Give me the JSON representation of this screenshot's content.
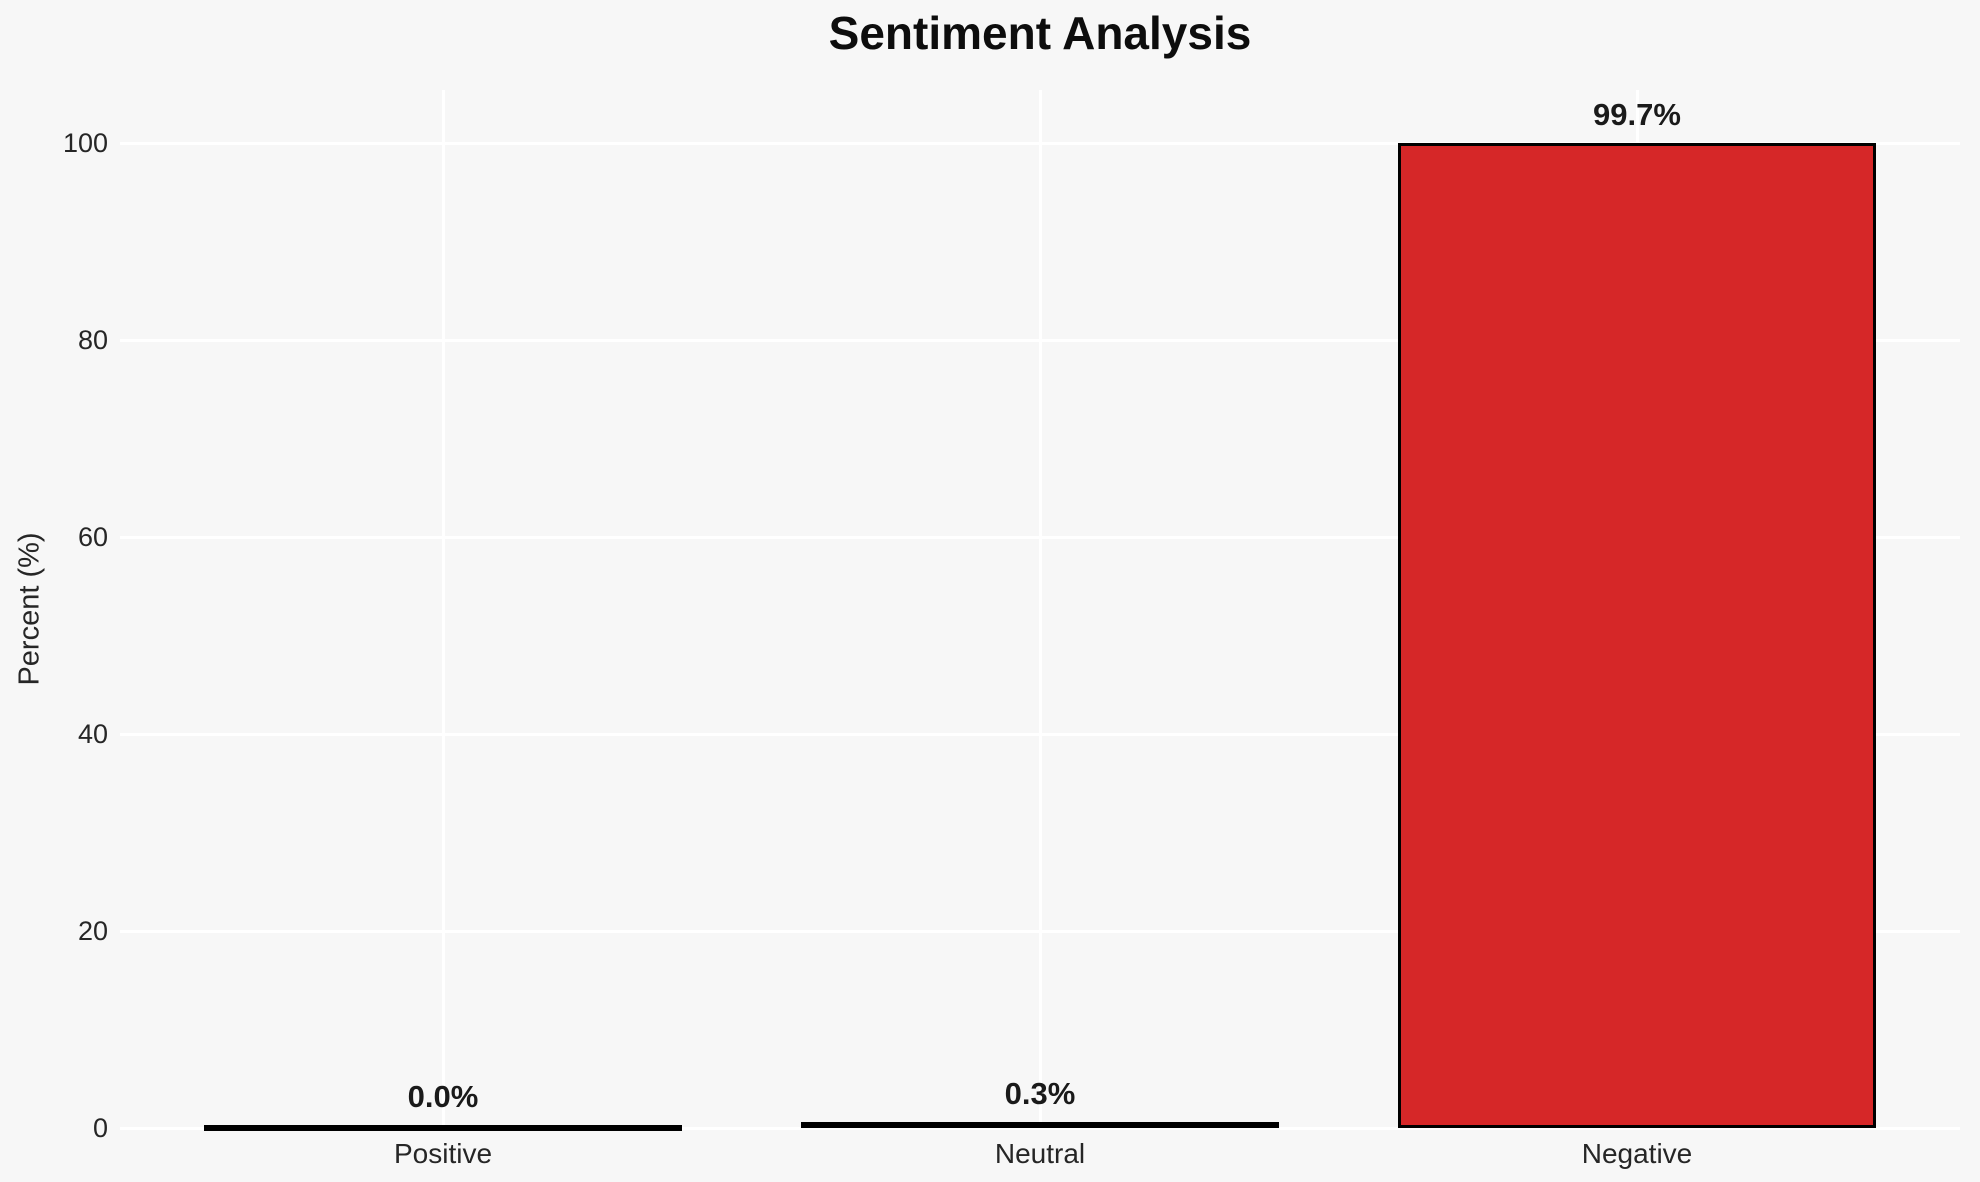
{
  "chart_data": {
    "type": "bar",
    "title": "Sentiment Analysis",
    "categories": [
      "Positive",
      "Neutral",
      "Negative"
    ],
    "values": [
      0.0,
      0.3,
      99.7
    ],
    "value_labels": [
      "0.0%",
      "0.3%",
      "99.7%"
    ],
    "xlabel": "",
    "ylabel": "Percent (%)",
    "yticks": [
      0,
      20,
      40,
      60,
      80,
      100
    ],
    "ytick_labels": [
      "0",
      "20",
      "40",
      "60",
      "80",
      "100"
    ],
    "ylim": [
      0,
      105
    ],
    "grid": true,
    "legend": false,
    "colors": {
      "bar_fill": "#d62728",
      "bar_edge": "#000000",
      "background": "#f7f7f7",
      "gridline": "#ffffff",
      "title_text": "#0d0d0d",
      "tick_text": "#262626"
    }
  }
}
